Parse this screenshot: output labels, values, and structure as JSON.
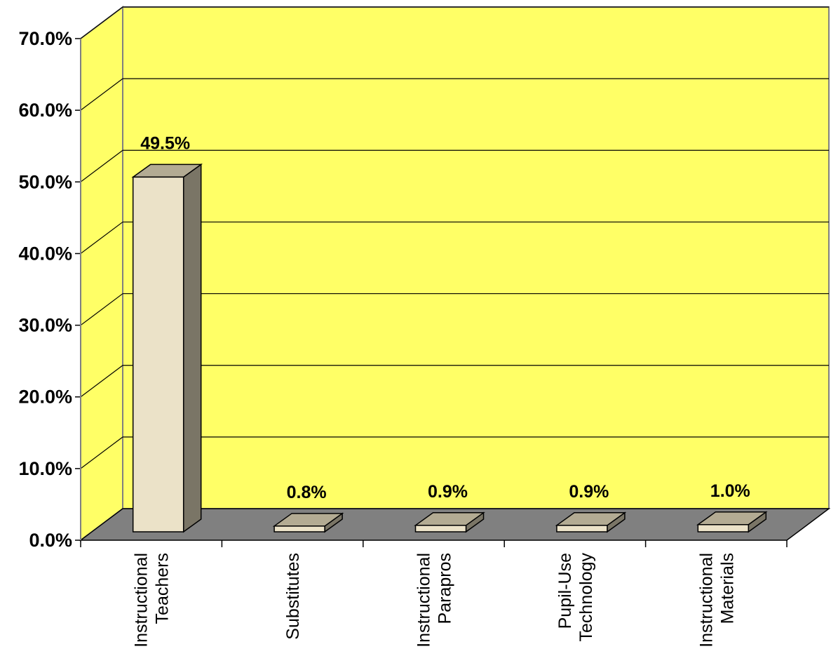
{
  "chart_data": {
    "type": "bar",
    "style": "3d",
    "categories": [
      [
        "Instructional",
        "Teachers"
      ],
      [
        "Substitutes"
      ],
      [
        "Instructional",
        "Parapros"
      ],
      [
        "Pupil-Use",
        "Technology"
      ],
      [
        "Instructional",
        "Materials"
      ]
    ],
    "values": [
      49.5,
      0.8,
      0.9,
      0.9,
      1.0
    ],
    "data_labels": [
      "49.5%",
      "0.8%",
      "0.9%",
      "0.9%",
      "1.0%"
    ],
    "ylim": [
      0,
      70
    ],
    "yticks": [
      0,
      10,
      20,
      30,
      40,
      50,
      60,
      70
    ],
    "ytick_labels": [
      "0.0%",
      "10.0%",
      "20.0%",
      "30.0%",
      "40.0%",
      "50.0%",
      "60.0%",
      "70.0%"
    ],
    "title": "",
    "xlabel": "",
    "ylabel": "",
    "grid": true,
    "colors": {
      "back_wall": "#ffff66",
      "side_wall": "#ffff66",
      "floor": "#808080",
      "bar_front": "#ebe2c8",
      "bar_top": "#b3ab93",
      "bar_side": "#7a7566",
      "gridline": "#000000"
    }
  }
}
